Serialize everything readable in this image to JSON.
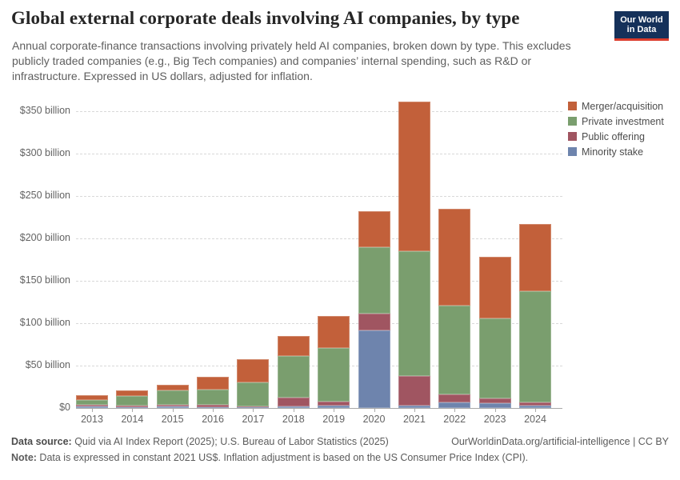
{
  "header": {
    "title": "Global external corporate deals involving AI companies, by type",
    "subtitle": "Annual corporate-finance transactions involving privately held AI companies, broken down by type. This excludes publicly traded companies (e.g., Big Tech companies) and companies’ internal spending, such as R&D or infrastructure. Expressed in US dollars, adjusted for inflation."
  },
  "logo": {
    "line1": "Our World",
    "line2": "in Data",
    "bg_color": "#15315A",
    "underline_color": "#DC3C2C"
  },
  "chart_data": {
    "type": "bar",
    "stacked": true,
    "title": "Global external corporate deals involving AI companies, by type",
    "unit": "US$ billion (constant 2021 US$)",
    "categories": [
      "2013",
      "2014",
      "2015",
      "2016",
      "2017",
      "2018",
      "2019",
      "2020",
      "2021",
      "2022",
      "2023",
      "2024"
    ],
    "series": [
      {
        "name": "Merger/acquisition",
        "color": "#C2603A",
        "values": [
          5.1,
          6.9,
          7.1,
          14.8,
          27.9,
          23.6,
          37.7,
          42.2,
          177.0,
          113.6,
          72.6,
          79.6
        ]
      },
      {
        "name": "Private investment",
        "color": "#7A9E6E",
        "values": [
          5.7,
          11.1,
          16.7,
          18.5,
          27.7,
          48.8,
          63.0,
          78.6,
          146.9,
          105.3,
          95.0,
          130.8
        ]
      },
      {
        "name": "Public offering",
        "color": "#A05561",
        "values": [
          1.9,
          1.9,
          2.2,
          2.3,
          1.5,
          10.9,
          5.3,
          19.8,
          34.9,
          8.8,
          5.3,
          3.8
        ]
      },
      {
        "name": "Minority stake",
        "color": "#6E84AD",
        "values": [
          2.1,
          0.9,
          1.6,
          1.2,
          0.7,
          1.6,
          2.5,
          91.2,
          2.8,
          6.9,
          5.7,
          3.1
        ]
      }
    ],
    "stack_order_bottom_to_top": [
      "Minority stake",
      "Public offering",
      "Private investment",
      "Merger/acquisition"
    ],
    "totals": [
      14.8,
      20.8,
      27.6,
      36.8,
      57.8,
      84.9,
      108.5,
      231.8,
      361.6,
      234.6,
      178.6,
      217.3
    ],
    "y_ticks": [
      {
        "value": 0,
        "label": "$0"
      },
      {
        "value": 50,
        "label": "$50 billion"
      },
      {
        "value": 100,
        "label": "$100 billion"
      },
      {
        "value": 150,
        "label": "$150 billion"
      },
      {
        "value": 200,
        "label": "$200 billion"
      },
      {
        "value": 250,
        "label": "$250 billion"
      },
      {
        "value": 300,
        "label": "$300 billion"
      },
      {
        "value": 350,
        "label": "$350 billion"
      }
    ],
    "ylim": [
      0,
      362
    ],
    "xlabel": "",
    "ylabel": "",
    "grid": "horizontal dashed",
    "legend_position": "top-right"
  },
  "footer": {
    "source_label": "Data source:",
    "source_text": " Quid via AI Index Report (2025); U.S. Bureau of Labor Statistics (2025)",
    "rights": "OurWorldinData.org/artificial-intelligence | CC BY",
    "note_label": "Note:",
    "note_text": " Data is expressed in constant 2021 US$. Inflation adjustment is based on the US Consumer Price Index (CPI)."
  }
}
